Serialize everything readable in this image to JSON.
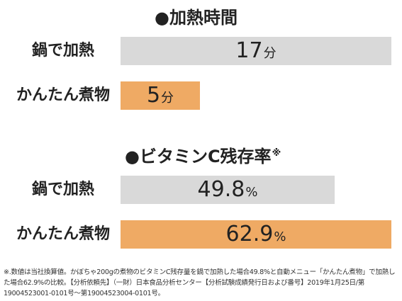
{
  "chart_data": [
    {
      "type": "bar",
      "title": "●加熱時間",
      "categories": [
        "鍋で加熱",
        "かんたん煮物"
      ],
      "values": [
        17,
        5
      ],
      "value_labels": [
        "17",
        "5"
      ],
      "unit": "分",
      "xlim": [
        0,
        17
      ],
      "colors": [
        "#d9d9d9",
        "#efaa64"
      ],
      "grid": false
    },
    {
      "type": "bar",
      "title": "●ビタミンC残存率",
      "title_mark": "※",
      "categories": [
        "鍋で加熱",
        "かんたん煮物"
      ],
      "values": [
        49.8,
        62.9
      ],
      "value_labels": [
        "49.8",
        "62.9"
      ],
      "unit": "%",
      "xlim": [
        0,
        62.9
      ],
      "colors": [
        "#d9d9d9",
        "#efaa64"
      ],
      "grid": false
    }
  ],
  "footnote": "※.数値は当社換算値。かぼちゃ200gの煮物のビタミンC残存量を鍋で加熱した場合49.8%と自動メニュー「かんたん煮物」で加熱した場合62.9%の比較。【分析依頼先】（一財）日本食品分析センター【分析試験成績発行日および番号】2019年1月25日/第19004523001-0101号〜第19004523004-0101号。"
}
